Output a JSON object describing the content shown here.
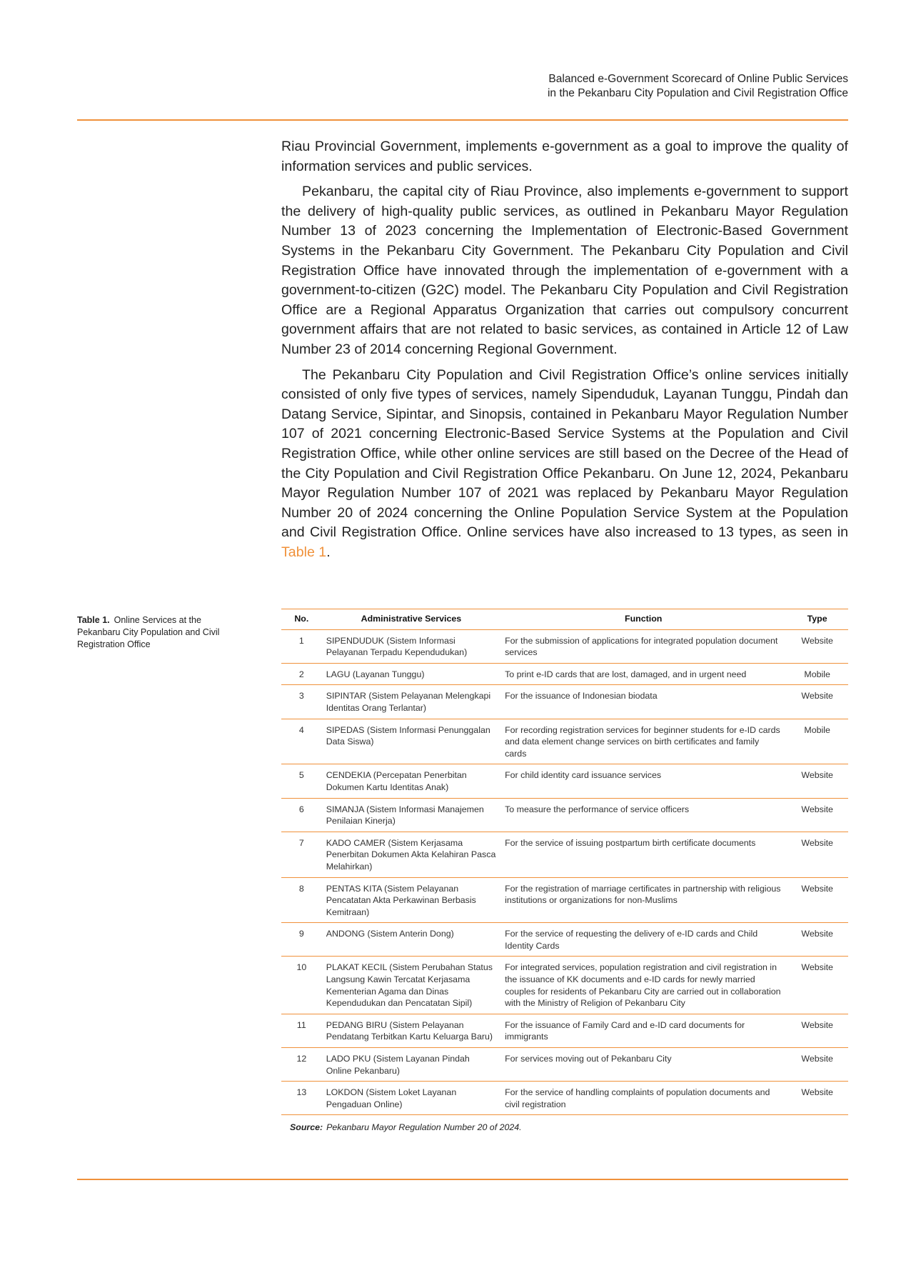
{
  "header": {
    "lines": [
      "Balanced e-Government Scorecard of Online Public Services",
      "in the Pekanbaru City Population and Civil Registration Office"
    ]
  },
  "paragraphs": [
    "Riau Provincial Government, implements e-government as a goal to improve the quality of information services and public services.",
    "Pekanbaru, the capital city of Riau Province, also implements e-government to support the delivery of high-quality public services, as outlined in Pekanbaru Mayor Regulation Number 13 of 2023 concerning the Implementation of Electronic-Based Government Systems in the Pekanbaru City Government. The Pekanbaru City Population and Civil Registration Office have innovated through the implementation of e-government with a government-to-citizen (G2C) model. The Pekanbaru City Population and Civil Registration Office are a Regional Apparatus Organization that carries out compulsory concurrent government affairs that are not related to basic services, as contained in Article 12 of Law Number 23 of 2014 concerning Regional Government.",
    {
      "before": "The Pekanbaru City Population and Civil Registration Office’s online services initially consisted of only five types of services, namely Sipenduduk, Layanan Tunggu, Pindah dan Datang Service, Sipintar, and Sinopsis, contained in Pekanbaru Mayor Regulation Number 107 of 2021 concerning Electronic-Based Service Systems at the Population and Civil Registration Office, while other online services are still based on the Decree of the Head of the City Population and Civil Registration Office Pekanbaru. On June 12, 2024, Pekanbaru Mayor Regulation Number 107 of 2021 was replaced by Pekanbaru Mayor Regulation Number 20 of 2024 concerning the Online Population Service System at the Population and Civil Registration Office. Online services have also increased to 13 types, as seen in",
      "link": "Table 1",
      "after": "."
    }
  ],
  "table": {
    "caption": {
      "label": "Table 1.",
      "text": "Online Services at the Pekanbaru City Population and Civil Registration Office"
    },
    "columns": [
      "No.",
      "Administrative Services",
      "Function",
      "Type"
    ],
    "rows": [
      [
        1,
        "SIPENDUDUK (Sistem Informasi Pelayanan Terpadu Kependudukan)",
        "For the submission of applications for integrated population document services",
        "Website"
      ],
      [
        2,
        "LAGU (Layanan Tunggu)",
        "To print e-ID cards that are lost, damaged, and in urgent need",
        "Mobile"
      ],
      [
        3,
        "SIPINTAR (Sistem Pelayanan Melengkapi Identitas Orang Terlantar)",
        "For the issuance of Indonesian biodata",
        "Website"
      ],
      [
        4,
        "SIPEDAS (Sistem Informasi Penunggalan Data Siswa)",
        "For recording registration services for beginner students for e-ID cards and data element change services on birth certificates and family cards",
        "Mobile"
      ],
      [
        5,
        "CENDEKIA (Percepatan Penerbitan Dokumen Kartu Identitas Anak)",
        "For child identity card issuance services",
        "Website"
      ],
      [
        6,
        "SIMANJA (Sistem Informasi Manajemen Penilaian Kinerja)",
        "To measure the performance of service officers",
        "Website"
      ],
      [
        7,
        "KADO CAMER (Sistem Kerjasama Penerbitan Dokumen Akta Kelahiran Pasca Melahirkan)",
        "For the service of issuing postpartum birth certificate documents",
        "Website"
      ],
      [
        8,
        "PENTAS KITA (Sistem Pelayanan Pencatatan Akta Perkawinan Berbasis Kemitraan)",
        "For the registration of marriage certificates in partnership with religious institutions or organizations for non-Muslims",
        "Website"
      ],
      [
        9,
        "ANDONG (Sistem Anterin Dong)",
        "For the service of requesting the delivery of e-ID cards and Child Identity Cards",
        "Website"
      ],
      [
        10,
        "PLAKAT KECIL (Sistem Perubahan Status Langsung Kawin Tercatat Kerjasama Kementerian Agama dan Dinas Kependudukan dan Pencatatan Sipil)",
        "For integrated services, population registration and civil registration in the issuance of KK documents and e-ID cards for newly married couples for residents of Pekanbaru City are carried out in collaboration with the Ministry of Religion of Pekanbaru City",
        "Website"
      ],
      [
        11,
        "PEDANG BIRU (Sistem Pelayanan Pendatang Terbitkan Kartu Keluarga Baru)",
        "For the issuance of Family Card and e-ID card documents for immigrants",
        "Website"
      ],
      [
        12,
        "LADO PKU (Sistem Layanan Pindah Online Pekanbaru)",
        "For services moving out of Pekanbaru City",
        "Website"
      ],
      [
        13,
        "LOKDON (Sistem Loket Layanan Pengaduan Online)",
        "For the service of handling complaints of population documents and civil registration",
        "Website"
      ]
    ],
    "source": {
      "label": "Source:",
      "text": "Pekanbaru Mayor Regulation Number 20 of 2024."
    }
  }
}
